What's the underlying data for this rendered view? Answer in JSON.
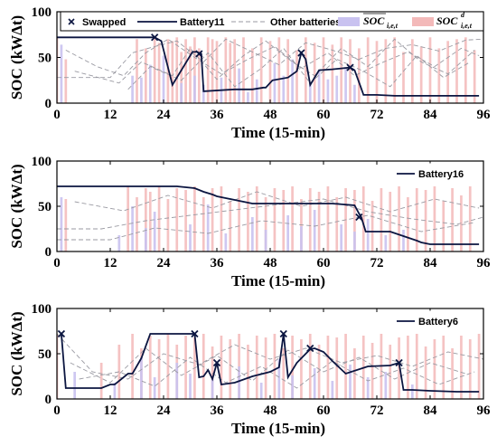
{
  "colors": {
    "highlight": "#0b1540",
    "other": "#9a9aa2",
    "soc_bar": "#c9c2f0",
    "socd_bar": "#f3b9b9",
    "swapped_marker": "#0b1540"
  },
  "chart_data": [
    {
      "type": "line",
      "xlabel": "Time (15-min)",
      "ylabel": "SOC (kWΔt)",
      "xlim": [
        0,
        96
      ],
      "ylim": [
        0,
        100
      ],
      "xticks": [
        "0",
        "12",
        "24",
        "36",
        "48",
        "60",
        "72",
        "84",
        "96"
      ],
      "yticks": [
        "0",
        "50",
        "100"
      ],
      "grid": false,
      "legend": {
        "placement": "top",
        "entries": [
          {
            "label": "Swapped",
            "kind": "marker"
          },
          {
            "label": "Battery11",
            "kind": "line"
          },
          {
            "label": "Other batteries",
            "kind": "dashed"
          },
          {
            "label": "SOC",
            "sub": "i,e,t",
            "sup": "",
            "kind": "bar"
          },
          {
            "label": "SOC",
            "sub": "i,e,t",
            "sup": "d",
            "kind": "bar-pink"
          }
        ]
      },
      "series": [
        {
          "name": "Battery11",
          "x": [
            0,
            22,
            23.5,
            26,
            30.5,
            31.5,
            32.5,
            33,
            40,
            44,
            46.5,
            47,
            48.5,
            52,
            54,
            55,
            56,
            57,
            59,
            62,
            64,
            66,
            67,
            68.5,
            69,
            72,
            76,
            84,
            90,
            95
          ],
          "y": [
            72,
            72,
            68,
            20,
            56,
            56,
            54,
            13,
            15,
            15,
            17,
            17,
            25,
            28,
            35,
            55,
            48,
            20,
            36,
            37,
            38,
            39,
            36,
            16,
            9,
            9,
            8,
            8,
            8,
            8
          ]
        }
      ],
      "swapped": [
        [
          22,
          72
        ],
        [
          32,
          54
        ],
        [
          55,
          55
        ],
        [
          66,
          39
        ]
      ],
      "other_series": [
        {
          "x": [
            0,
            12,
            17,
            22,
            27,
            33,
            38,
            44,
            50,
            56,
            62,
            68,
            74,
            80,
            86,
            92,
            96
          ],
          "y": [
            28,
            28,
            55,
            62,
            68,
            45,
            70,
            56,
            42,
            66,
            58,
            48,
            60,
            64,
            57,
            69,
            70
          ]
        },
        {
          "x": [
            2,
            9,
            15,
            20,
            25,
            31,
            37,
            43,
            49,
            55,
            61,
            67,
            73,
            79,
            85,
            91,
            95
          ],
          "y": [
            58,
            40,
            30,
            55,
            70,
            50,
            32,
            48,
            62,
            38,
            55,
            30,
            44,
            56,
            40,
            60,
            52
          ]
        },
        {
          "x": [
            4,
            14,
            19,
            26,
            30,
            36,
            42,
            47,
            53,
            58,
            64,
            70,
            76,
            82,
            88,
            94
          ],
          "y": [
            35,
            22,
            45,
            30,
            60,
            26,
            52,
            68,
            45,
            30,
            60,
            40,
            70,
            45,
            32,
            58
          ]
        },
        {
          "x": [
            16,
            21,
            28,
            34,
            40,
            46,
            51,
            57,
            63,
            69,
            75,
            81,
            87,
            93
          ],
          "y": [
            15,
            40,
            25,
            55,
            18,
            38,
            60,
            22,
            48,
            35,
            18,
            52,
            28,
            45
          ]
        }
      ],
      "bars_soc": {
        "x": [
          1,
          17,
          19,
          21,
          24,
          28,
          31,
          33,
          37,
          41,
          43,
          45,
          49,
          51,
          53,
          57,
          59,
          61,
          63,
          65,
          67
        ],
        "y": [
          64,
          30,
          28,
          42,
          52,
          22,
          30,
          20,
          28,
          38,
          12,
          26,
          44,
          30,
          48,
          22,
          36,
          26,
          30,
          38,
          20
        ]
      },
      "bars_socd": {
        "x": [
          0,
          2,
          18,
          20,
          22,
          23,
          25,
          26,
          27,
          28,
          29,
          30,
          31,
          32,
          34,
          35,
          36,
          38,
          39,
          40,
          42,
          44,
          46,
          48,
          50,
          52,
          54,
          56,
          58,
          60,
          62,
          64,
          66,
          68,
          70,
          72,
          74,
          76,
          78,
          80,
          82,
          84,
          86,
          88,
          90,
          92,
          94
        ],
        "y": [
          72,
          48,
          70,
          60,
          72,
          66,
          70,
          68,
          72,
          56,
          70,
          62,
          72,
          60,
          72,
          70,
          68,
          72,
          66,
          70,
          72,
          60,
          72,
          68,
          72,
          70,
          58,
          72,
          66,
          72,
          64,
          72,
          70,
          60,
          72,
          68,
          70,
          72,
          56,
          70,
          62,
          72,
          60,
          68,
          70,
          72,
          58
        ]
      }
    },
    {
      "type": "line",
      "xlabel": "Time (15-min)",
      "ylabel": "SOC (kWΔt)",
      "xlim": [
        0,
        96
      ],
      "ylim": [
        0,
        100
      ],
      "xticks": [
        "0",
        "12",
        "24",
        "36",
        "48",
        "60",
        "72",
        "84",
        "96"
      ],
      "yticks": [
        "0",
        "50",
        "100"
      ],
      "grid": false,
      "legend": {
        "placement": "top-right",
        "entries": [
          {
            "label": "Battery16",
            "kind": "line"
          }
        ]
      },
      "series": [
        {
          "name": "Battery16",
          "x": [
            0,
            15,
            27,
            29,
            31,
            33,
            35,
            36,
            38,
            40,
            42,
            44,
            48,
            55,
            62,
            67,
            68,
            68.5,
            69.5,
            72,
            75,
            78,
            81,
            82,
            84,
            88,
            92,
            95
          ],
          "y": [
            72,
            72,
            72,
            71,
            70,
            66,
            63,
            61,
            59,
            57,
            55,
            53,
            53,
            53,
            53,
            51,
            42,
            38,
            22,
            22,
            22,
            17,
            12,
            10,
            8,
            8,
            8,
            8
          ]
        }
      ],
      "swapped": [
        [
          68,
          38
        ]
      ],
      "other_series": [
        {
          "x": [
            0,
            10,
            20,
            30,
            40,
            50,
            60,
            70,
            80,
            90,
            96
          ],
          "y": [
            25,
            25,
            34,
            40,
            46,
            52,
            58,
            44,
            36,
            30,
            38
          ]
        },
        {
          "x": [
            0,
            12,
            22,
            34,
            46,
            58,
            70,
            82,
            94
          ],
          "y": [
            13,
            13,
            26,
            20,
            34,
            28,
            40,
            22,
            32
          ]
        },
        {
          "x": [
            4,
            15,
            25,
            35,
            45,
            55,
            65,
            75,
            85,
            95
          ],
          "y": [
            55,
            45,
            62,
            48,
            66,
            50,
            60,
            44,
            58,
            48
          ]
        }
      ],
      "bars_soc": {
        "x": [
          1,
          14,
          17,
          20,
          22,
          30,
          34,
          38,
          44,
          47,
          52,
          55,
          58,
          64,
          67,
          70,
          74,
          78
        ],
        "y": [
          60,
          18,
          50,
          26,
          44,
          30,
          52,
          20,
          38,
          24,
          40,
          28,
          46,
          30,
          22,
          36,
          18,
          24
        ]
      },
      "bars_socd": {
        "x": [
          2,
          16,
          18,
          20,
          21,
          23,
          25,
          27,
          29,
          31,
          33,
          35,
          37,
          39,
          41,
          43,
          45,
          47,
          49,
          51,
          53,
          55,
          57,
          59,
          61,
          63,
          65,
          67,
          69,
          71,
          73,
          75,
          77,
          79,
          81,
          83,
          85,
          87,
          89,
          91,
          93
        ],
        "y": [
          58,
          72,
          60,
          70,
          66,
          72,
          58,
          70,
          68,
          72,
          60,
          70,
          72,
          56,
          70,
          66,
          72,
          60,
          70,
          68,
          72,
          58,
          70,
          66,
          72,
          60,
          70,
          68,
          72,
          56,
          70,
          66,
          72,
          60,
          70,
          68,
          72,
          56,
          70,
          62,
          72
        ]
      }
    },
    {
      "type": "line",
      "xlabel": "Time (15-min)",
      "ylabel": "SOC (kWΔt)",
      "xlim": [
        0,
        96
      ],
      "ylim": [
        0,
        100
      ],
      "xticks": [
        "0",
        "12",
        "24",
        "36",
        "48",
        "60",
        "72",
        "84",
        "96"
      ],
      "yticks": [
        "0",
        "50",
        "100"
      ],
      "grid": false,
      "legend": {
        "placement": "top-right",
        "entries": [
          {
            "label": "Battery6",
            "kind": "line"
          }
        ]
      },
      "series": [
        {
          "name": "Battery6",
          "x": [
            1,
            2,
            6,
            10,
            12,
            13,
            16,
            17,
            19,
            21,
            24,
            28,
            31,
            32,
            33,
            34,
            35,
            36,
            37,
            40,
            44,
            48,
            50,
            51,
            52,
            54,
            57,
            58,
            60,
            62,
            65,
            70,
            75,
            77,
            78,
            80,
            84,
            90,
            95
          ],
          "y": [
            72,
            12,
            12,
            12,
            16,
            16,
            28,
            28,
            45,
            72,
            72,
            72,
            72,
            24,
            25,
            32,
            22,
            40,
            16,
            18,
            25,
            30,
            35,
            72,
            24,
            40,
            55,
            56,
            52,
            42,
            28,
            36,
            37,
            40,
            10,
            10,
            9,
            8,
            8
          ]
        }
      ],
      "swapped": [
        [
          1,
          72
        ],
        [
          31,
          72
        ],
        [
          36,
          40
        ],
        [
          51,
          72
        ],
        [
          57,
          56
        ],
        [
          77,
          40
        ]
      ],
      "other_series": [
        {
          "x": [
            0,
            8,
            16,
            24,
            32,
            40,
            48,
            56,
            64,
            72,
            80,
            88,
            96
          ],
          "y": [
            72,
            30,
            22,
            50,
            38,
            60,
            44,
            56,
            40,
            48,
            36,
            52,
            44
          ]
        },
        {
          "x": [
            3,
            12,
            20,
            28,
            36,
            44,
            52,
            60,
            68,
            76,
            84,
            92
          ],
          "y": [
            40,
            18,
            56,
            26,
            48,
            20,
            54,
            30,
            46,
            22,
            40,
            28
          ]
        },
        {
          "x": [
            5,
            14,
            22,
            30,
            38,
            46,
            54,
            62,
            70,
            78,
            86,
            94
          ],
          "y": [
            22,
            30,
            14,
            46,
            18,
            36,
            12,
            42,
            20,
            34,
            16,
            30
          ]
        }
      ],
      "bars_soc": {
        "x": [
          4,
          13,
          19,
          22,
          27,
          30,
          35,
          41,
          46,
          50,
          53,
          58,
          62,
          66,
          70,
          74,
          80
        ],
        "y": [
          30,
          18,
          46,
          24,
          40,
          28,
          22,
          36,
          18,
          44,
          26,
          34,
          20,
          38,
          24,
          30,
          16
        ]
      },
      "bars_socd": {
        "x": [
          0,
          10,
          14,
          17,
          19,
          21,
          23,
          25,
          27,
          29,
          31,
          33,
          35,
          37,
          39,
          41,
          43,
          45,
          47,
          49,
          51,
          53,
          55,
          57,
          59,
          61,
          63,
          65,
          67,
          69,
          71,
          73,
          75,
          77,
          79,
          81,
          83,
          85,
          87,
          89,
          91,
          93,
          95
        ],
        "y": [
          72,
          40,
          60,
          72,
          56,
          70,
          66,
          72,
          60,
          70,
          68,
          72,
          58,
          70,
          66,
          72,
          60,
          70,
          68,
          72,
          56,
          70,
          66,
          72,
          60,
          70,
          68,
          72,
          56,
          70,
          62,
          72,
          60,
          68,
          70,
          72,
          58,
          66,
          70,
          56,
          70,
          66,
          72
        ]
      }
    }
  ]
}
